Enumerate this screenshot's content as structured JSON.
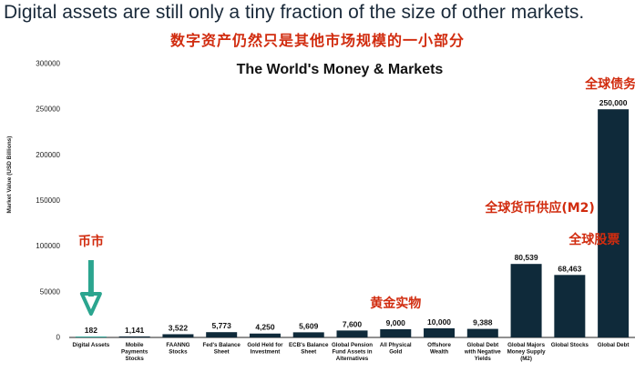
{
  "headline": "Digital assets are still only a tiny fraction of the size of other markets.",
  "subheadline": "数字资产仍然只是其他市场规模的一小部分",
  "colors": {
    "bar": "#0f2a3a",
    "bar_highlight": "#2b9e90",
    "arrow": "#2ba58f",
    "annotation": "#d12c0f",
    "axis": "#222222"
  },
  "chart_data": {
    "type": "bar",
    "title": "The World's Money & Markets",
    "ylabel": "Market Value (USD Billions)",
    "xlabel": "",
    "ylim": [
      0,
      300000
    ],
    "yticks": [
      0,
      50000,
      100000,
      150000,
      200000,
      250000,
      300000
    ],
    "ytick_labels": [
      "0",
      "50000",
      "100000",
      "150000",
      "200000",
      "250000",
      "300000"
    ],
    "grid": false,
    "categories": [
      "Digital Assets",
      "Mobile Payments Stocks",
      "FAANNG Stocks",
      "Fed's Balance Sheet",
      "Gold Held for Investment",
      "ECB's Balance Sheet",
      "Global Pension Fund Assets in Alternatives",
      "All Physical Gold",
      "Offshore Wealth",
      "Global Debt with Negative Yields",
      "Global Majors Money Supply (M2)",
      "Global Stocks",
      "Global Debt"
    ],
    "category_lines": [
      [
        "Digital Assets"
      ],
      [
        "Mobile",
        "Payments",
        "Stocks"
      ],
      [
        "FAANNG",
        "Stocks"
      ],
      [
        "Fed's Balance",
        "Sheet"
      ],
      [
        "Gold Held for",
        "Investment"
      ],
      [
        "ECB's Balance",
        "Sheet"
      ],
      [
        "Global Pension",
        "Fund Assets in",
        "Alternatives"
      ],
      [
        "All Physical",
        "Gold"
      ],
      [
        "Offshore",
        "Wealth"
      ],
      [
        "Global Debt",
        "with Negative",
        "Yields"
      ],
      [
        "Global Majors",
        "Money Supply",
        "(M2)"
      ],
      [
        "Global Stocks"
      ],
      [
        "Global Debt"
      ]
    ],
    "values": [
      182,
      1141,
      3522,
      5773,
      4250,
      5609,
      7600,
      9000,
      10000,
      9388,
      80539,
      68463,
      250000
    ],
    "value_labels": [
      "182",
      "1,141",
      "3,522",
      "5,773",
      "4,250",
      "5,609",
      "7,600",
      "9,000",
      "10,000",
      "9,388",
      "80,539",
      "68,463",
      "250,000"
    ],
    "highlight_index": 0,
    "annotations": [
      {
        "text": "币市",
        "category": 0,
        "arrow": true
      },
      {
        "text": "黄金实物",
        "category": 7
      },
      {
        "text": "全球货币供应(M2)",
        "category": 10
      },
      {
        "text": "全球股票",
        "category": 11
      },
      {
        "text": "全球债务",
        "category": 12
      }
    ]
  }
}
